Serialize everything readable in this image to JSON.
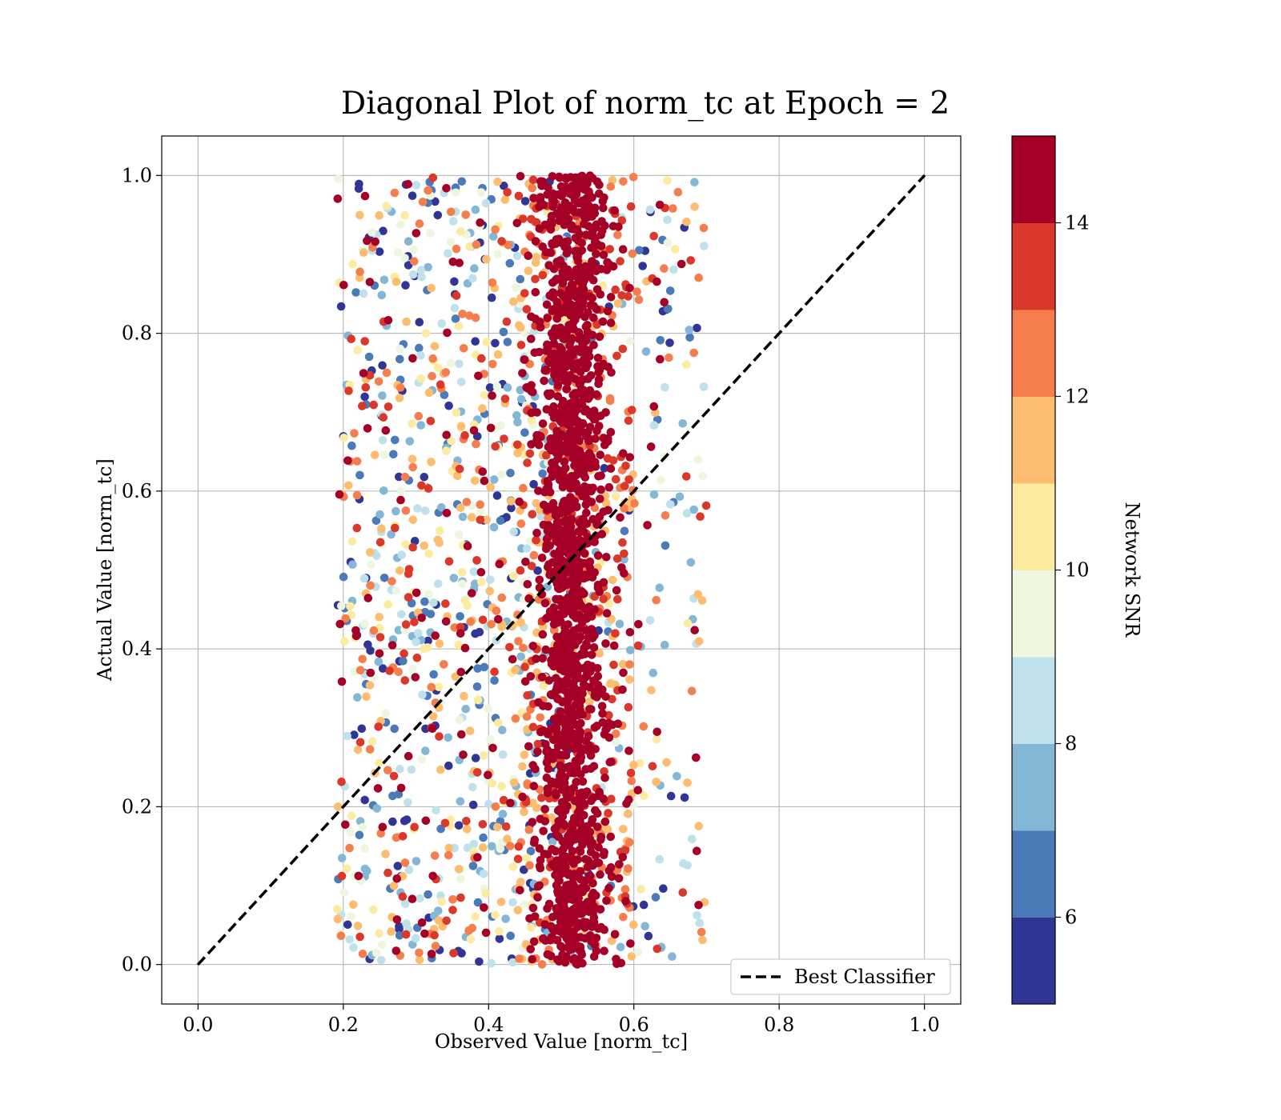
{
  "chart_data": {
    "type": "scatter",
    "title": "Diagonal Plot of norm_tc at Epoch = 2",
    "xlabel": "Observed Value [norm_tc]",
    "ylabel": "Actual Value [norm_tc]",
    "xlim": [
      -0.05,
      1.05
    ],
    "ylim": [
      -0.05,
      1.05
    ],
    "xticks": [
      "0.0",
      "0.2",
      "0.4",
      "0.6",
      "0.8",
      "1.0"
    ],
    "yticks": [
      "0.0",
      "0.2",
      "0.4",
      "0.6",
      "0.8",
      "1.0"
    ],
    "grid": true,
    "legend": {
      "placement": "lower-right",
      "entries": [
        {
          "label": "Best Classifier",
          "style": "dashed",
          "color": "#000000"
        }
      ]
    },
    "reference_line": {
      "x": [
        0.0,
        1.0
      ],
      "y": [
        0.0,
        1.0
      ]
    },
    "colorbar": {
      "label": "Network SNR",
      "range": [
        5,
        15
      ],
      "ticks": [
        "6",
        "8",
        "10",
        "12",
        "14"
      ],
      "bins": [
        {
          "from": 5,
          "to": 6,
          "color": "#313695"
        },
        {
          "from": 6,
          "to": 7,
          "color": "#4a7ab7"
        },
        {
          "from": 7,
          "to": 8,
          "color": "#84b6d6"
        },
        {
          "from": 8,
          "to": 9,
          "color": "#bfe1ec"
        },
        {
          "from": 9,
          "to": 10,
          "color": "#eef6df"
        },
        {
          "from": 10,
          "to": 11,
          "color": "#fdeba1"
        },
        {
          "from": 11,
          "to": 12,
          "color": "#fdbd71"
        },
        {
          "from": 12,
          "to": 13,
          "color": "#f57e4e"
        },
        {
          "from": 13,
          "to": 14,
          "color": "#da382a"
        },
        {
          "from": 14,
          "to": 15,
          "color": "#a50026"
        }
      ]
    },
    "series": [
      {
        "description_of_distribution": "dense vertical band",
        "x_center": 0.515,
        "x_spread": 0.035,
        "y_range": [
          0.0,
          1.0
        ],
        "snr": 15,
        "count": 1400
      },
      {
        "description_of_distribution": "band fringe",
        "x_range": [
          0.44,
          0.6
        ],
        "y_range": [
          0.0,
          1.0
        ],
        "snr_range": [
          11,
          15
        ],
        "count": 450
      },
      {
        "description_of_distribution": "scattered low-confidence points",
        "x_range": [
          0.19,
          0.7
        ],
        "y_range": [
          0.0,
          1.0
        ],
        "snr_range": [
          5,
          15
        ],
        "count": 1300
      }
    ]
  }
}
